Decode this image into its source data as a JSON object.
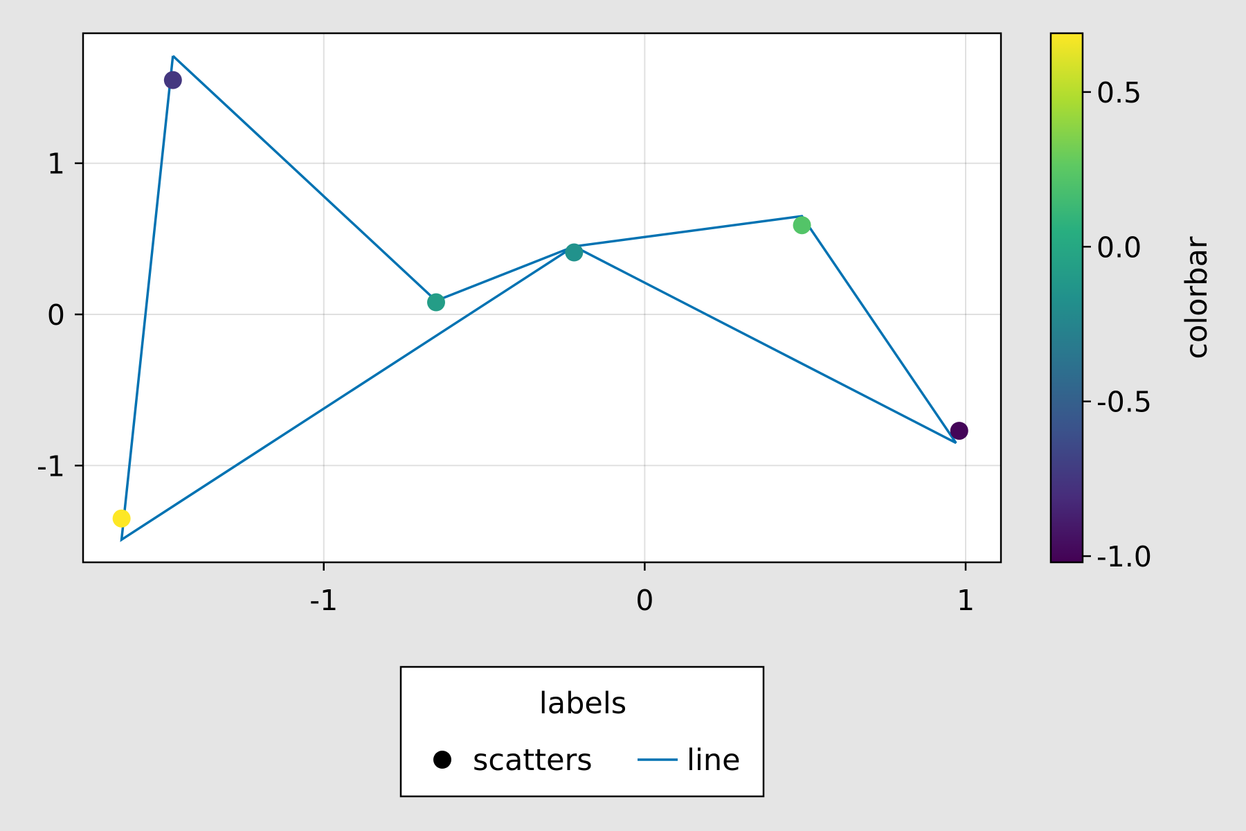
{
  "background": "#e5e5e5",
  "chart_data": {
    "type": "scatter",
    "title": "",
    "xlabel": "",
    "ylabel": "",
    "xlim": [
      -1.75,
      1.11
    ],
    "ylim": [
      -1.64,
      1.86
    ],
    "xticks": [
      -1,
      0,
      1
    ],
    "xtick_labels": [
      "-1",
      "0",
      "1"
    ],
    "yticks": [
      -1,
      0,
      1
    ],
    "ytick_labels": [
      "-1",
      "0",
      "1"
    ],
    "grid": true,
    "series": [
      {
        "name": "scatters",
        "kind": "scatter",
        "points": [
          {
            "x": -1.63,
            "y": -1.35,
            "c": 0.69
          },
          {
            "x": -1.47,
            "y": 1.55,
            "c": -0.75
          },
          {
            "x": -0.65,
            "y": 0.08,
            "c": -0.08
          },
          {
            "x": -0.22,
            "y": 0.41,
            "c": -0.16
          },
          {
            "x": 0.49,
            "y": 0.59,
            "c": 0.22
          },
          {
            "x": 0.98,
            "y": -0.77,
            "c": -1.0
          }
        ]
      },
      {
        "name": "line",
        "kind": "line",
        "color": "#0072b2",
        "points": [
          {
            "x": -1.47,
            "y": 1.71
          },
          {
            "x": -0.65,
            "y": 0.09
          },
          {
            "x": -0.22,
            "y": 0.45
          },
          {
            "x": 0.49,
            "y": 0.65
          },
          {
            "x": 0.97,
            "y": -0.85
          },
          {
            "x": -0.22,
            "y": 0.45
          },
          {
            "x": -1.63,
            "y": -1.49
          },
          {
            "x": -1.47,
            "y": 1.71
          }
        ]
      }
    ],
    "colorbar": {
      "label": "colorbar",
      "colormap": "viridis",
      "range": [
        -1.02,
        0.69
      ],
      "ticks": [
        -1.0,
        -0.5,
        0.0,
        0.5
      ],
      "tick_labels": [
        "-1.0",
        "-0.5",
        "0.0",
        "0.5"
      ]
    },
    "legend": {
      "title": "labels",
      "position": "bottom",
      "entries": [
        {
          "label": "scatters",
          "marker": "circle",
          "color": "#000000"
        },
        {
          "label": "line",
          "marker": "line",
          "color": "#0072b2"
        }
      ]
    }
  }
}
